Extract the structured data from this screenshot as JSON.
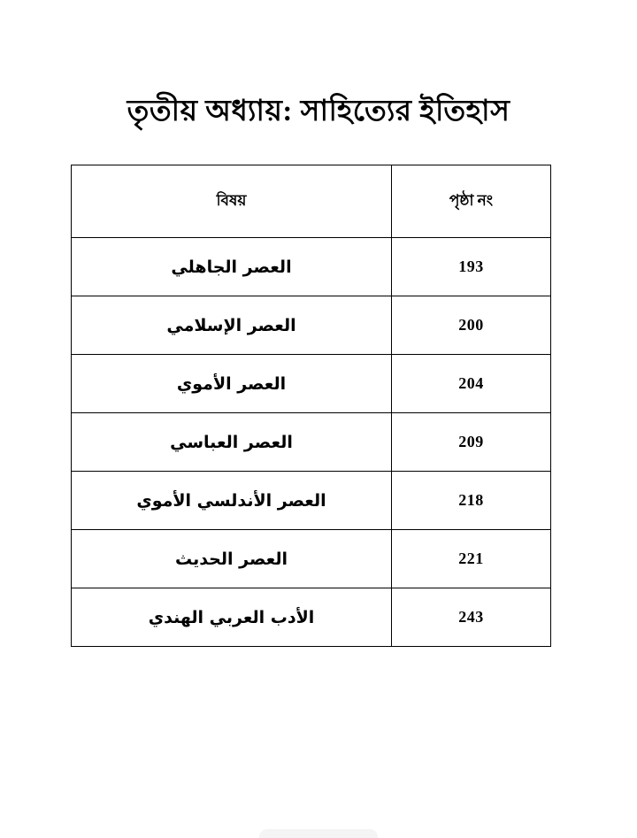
{
  "page": {
    "title": "তৃতীয় অধ্যায়: সাহিত্যের ইতিহাস",
    "background_color": "#ffffff",
    "text_color": "#000000",
    "border_color": "#000000"
  },
  "table": {
    "headers": {
      "subject": "বিষয়",
      "page_no": "পৃষ্ঠা নং"
    },
    "rows": [
      {
        "subject": "العصر الجاهلي",
        "page": "193"
      },
      {
        "subject": "العصر الإسلامي",
        "page": "200"
      },
      {
        "subject": "العصر الأموي",
        "page": "204"
      },
      {
        "subject": "العصر العباسي",
        "page": "209"
      },
      {
        "subject": "العصر الأندلسي الأموي",
        "page": "218"
      },
      {
        "subject": "العصر الحديث",
        "page": "221"
      },
      {
        "subject": "الأدب العربي الهندي",
        "page": "243"
      }
    ]
  }
}
